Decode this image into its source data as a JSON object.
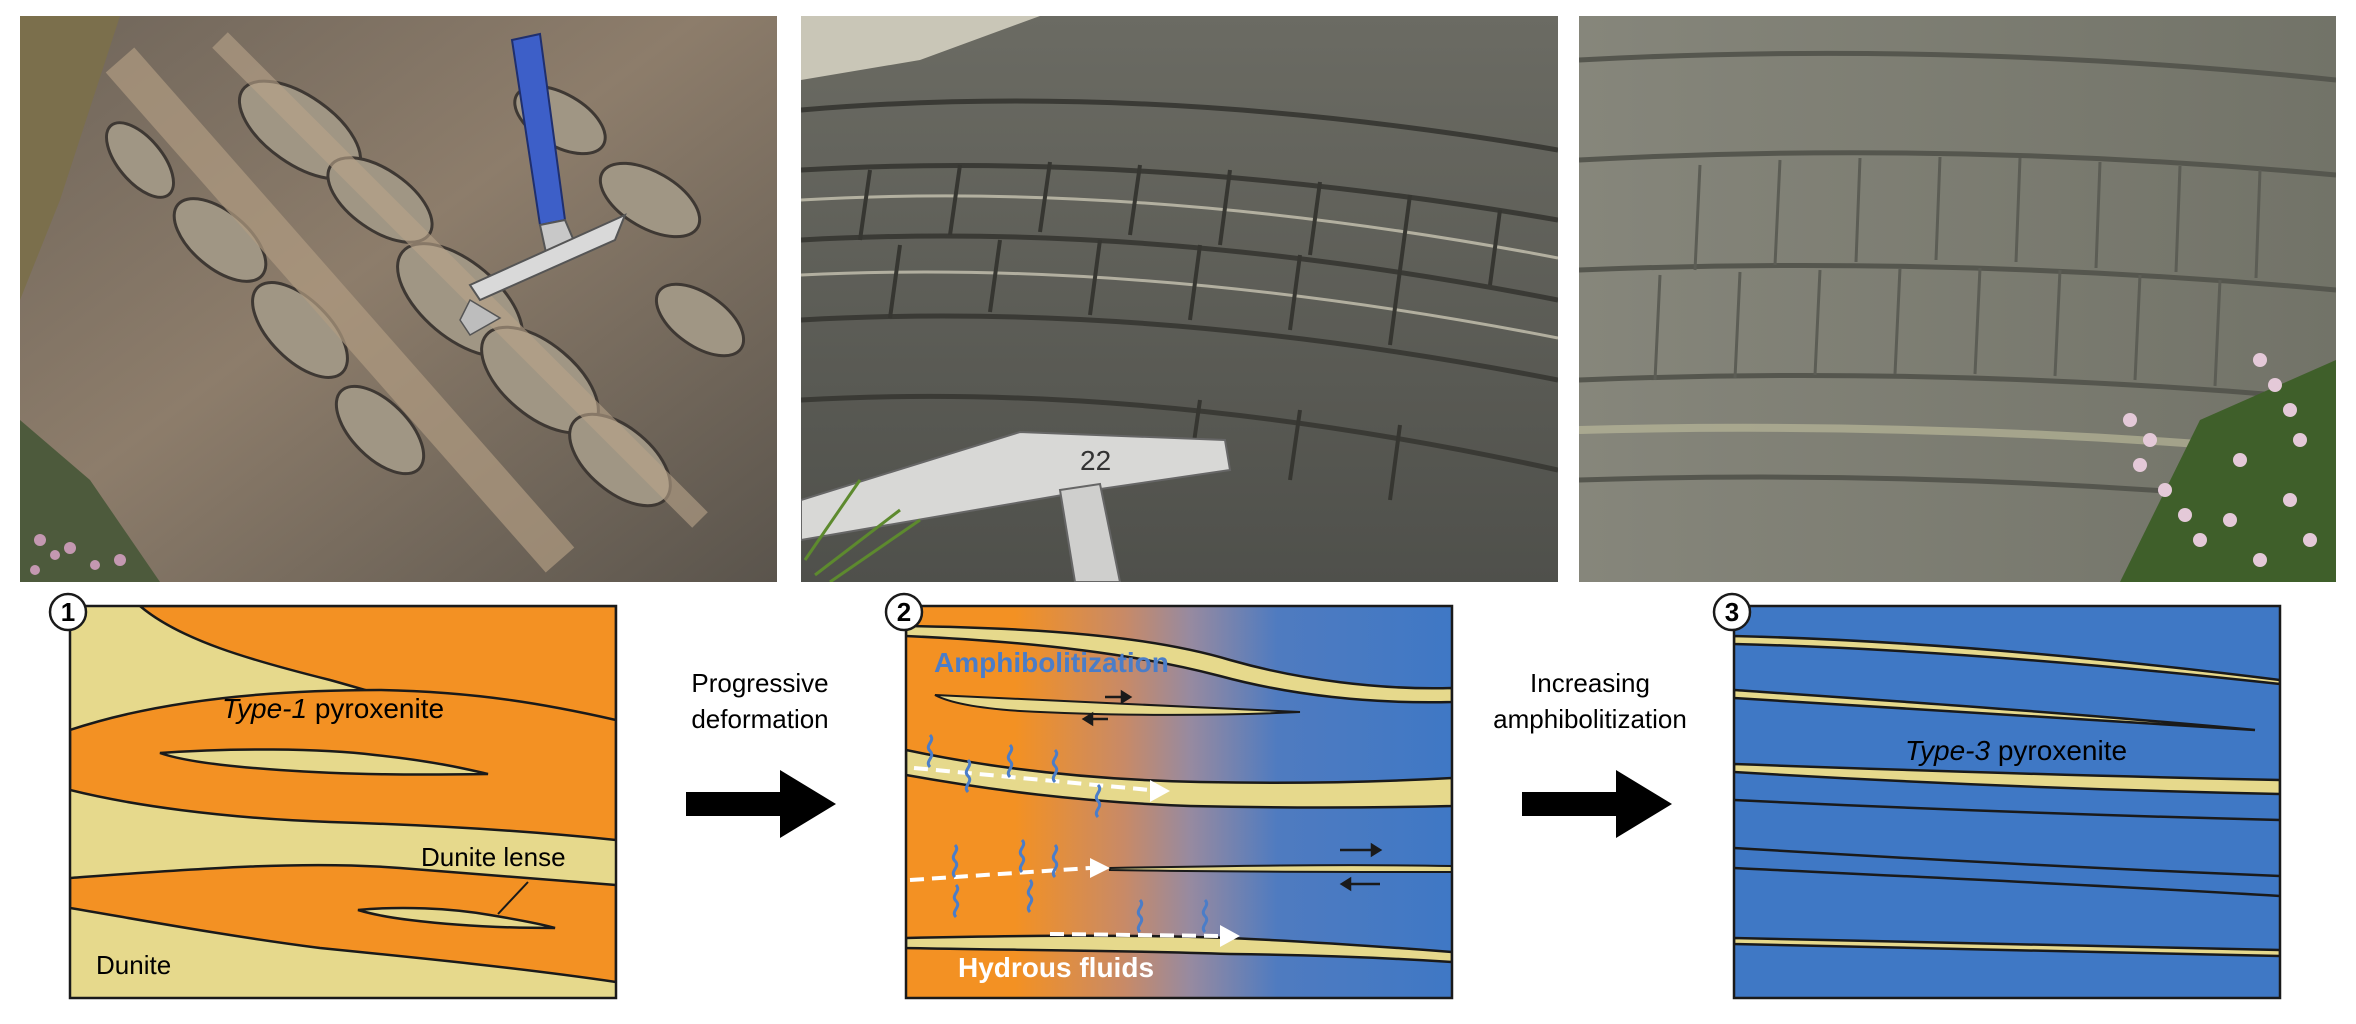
{
  "photos": [
    {
      "name": "photo-1",
      "subject": "type-1-pyroxenite-outcrop-with-rock-hammer"
    },
    {
      "name": "photo-2",
      "subject": "amphibolitized-layered-outcrop-with-pickaxe",
      "hammer_number": "22"
    },
    {
      "name": "photo-3",
      "subject": "type-3-pyroxenite-layered-outcrop-with-heather"
    }
  ],
  "panel1": {
    "number": "1",
    "type_word": "Type-1",
    "type_rest": " pyroxenite",
    "lens_label": "Dunite lense",
    "dunite_label": "Dunite"
  },
  "arrow1": {
    "line1": "Progressive",
    "line2": "deformation"
  },
  "panel2": {
    "number": "2",
    "top_label": "Amphibolitization",
    "bottom_label": "Hydrous fluids"
  },
  "arrow2": {
    "line1": "Increasing",
    "line2": "amphibolitization"
  },
  "panel3": {
    "number": "3",
    "type_word": "Type-3",
    "type_rest": " pyroxenite"
  },
  "colors": {
    "orange": "#f39123",
    "dunite_yellow": "#e6d98c",
    "blue": "#3f78c5",
    "label_blue": "#4b7dc8",
    "arrow_black": "#000000"
  }
}
